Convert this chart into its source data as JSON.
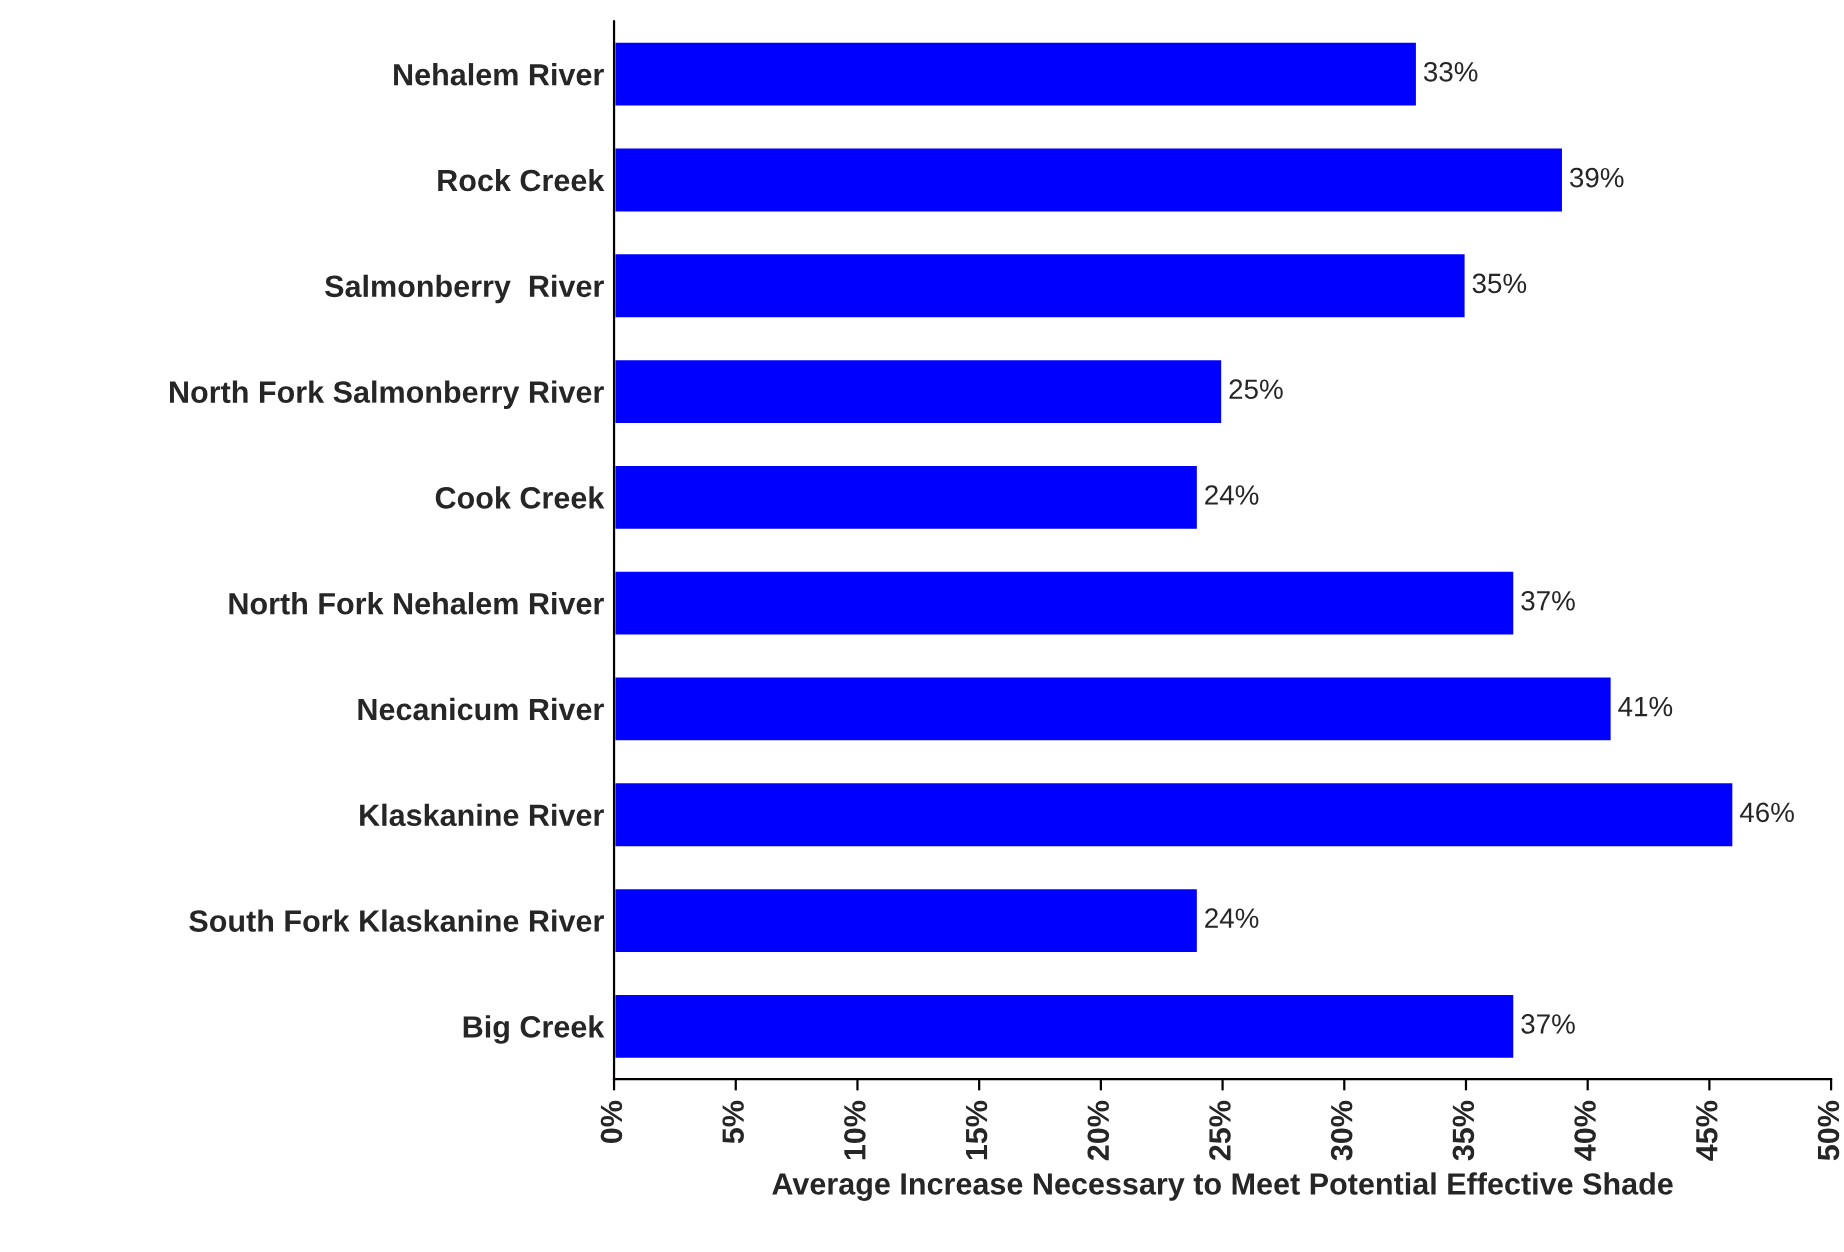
{
  "chart_data": {
    "type": "bar",
    "orientation": "horizontal",
    "xlabel": "Average Increase Necessary to Meet Potential Effective Shade",
    "categories": [
      "Nehalem River",
      "Rock Creek",
      "Salmonberry  River",
      "North Fork Salmonberry River",
      "Cook Creek",
      "North Fork Nehalem River",
      "Necanicum River",
      "Klaskanine River",
      "South Fork Klaskanine River",
      "Big Creek"
    ],
    "values": [
      33,
      39,
      35,
      25,
      24,
      37,
      41,
      46,
      24,
      37
    ],
    "value_labels": [
      "33%",
      "39%",
      "35%",
      "25%",
      "24%",
      "37%",
      "41%",
      "46%",
      "24%",
      "37%"
    ],
    "color": "#0000ff",
    "xlim": [
      0,
      50
    ],
    "xticks": [
      {
        "value": 0,
        "label": "0%"
      },
      {
        "value": 5,
        "label": "5%"
      },
      {
        "value": 10,
        "label": "10%"
      },
      {
        "value": 15,
        "label": "15%"
      },
      {
        "value": 20,
        "label": "20%"
      },
      {
        "value": 25,
        "label": "25%"
      },
      {
        "value": 30,
        "label": "30%"
      },
      {
        "value": 35,
        "label": "35%"
      },
      {
        "value": 40,
        "label": "40%"
      },
      {
        "value": 45,
        "label": "45%"
      },
      {
        "value": 50,
        "label": "50%"
      }
    ],
    "grid": false
  }
}
